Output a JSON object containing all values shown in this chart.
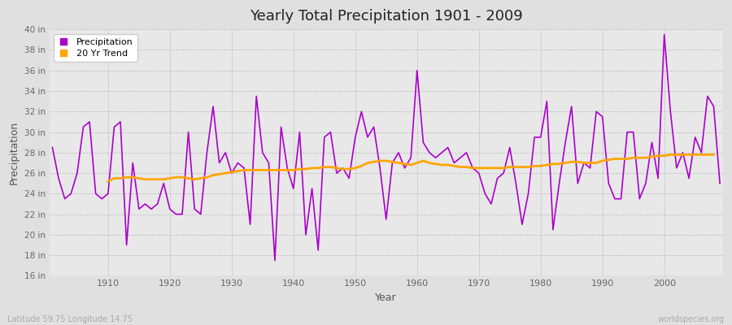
{
  "title": "Yearly Total Precipitation 1901 - 2009",
  "xlabel": "Year",
  "ylabel": "Precipitation",
  "subtitle": "Latitude 59.75 Longitude 14.75",
  "watermark": "worldspecies.org",
  "legend_labels": [
    "Precipitation",
    "20 Yr Trend"
  ],
  "precip_color": "#AA00CC",
  "trend_color": "#FFA500",
  "fig_bg_color": "#E0E0E0",
  "plot_bg_color": "#E8E8E8",
  "ylim": [
    16,
    40
  ],
  "ytick_step": 2,
  "years": [
    1901,
    1902,
    1903,
    1904,
    1905,
    1906,
    1907,
    1908,
    1909,
    1910,
    1911,
    1912,
    1913,
    1914,
    1915,
    1916,
    1917,
    1918,
    1919,
    1920,
    1921,
    1922,
    1923,
    1924,
    1925,
    1926,
    1927,
    1928,
    1929,
    1930,
    1931,
    1932,
    1933,
    1934,
    1935,
    1936,
    1937,
    1938,
    1939,
    1940,
    1941,
    1942,
    1943,
    1944,
    1945,
    1946,
    1947,
    1948,
    1949,
    1950,
    1951,
    1952,
    1953,
    1954,
    1955,
    1956,
    1957,
    1958,
    1959,
    1960,
    1961,
    1962,
    1963,
    1964,
    1965,
    1966,
    1967,
    1968,
    1969,
    1970,
    1971,
    1972,
    1973,
    1974,
    1975,
    1976,
    1977,
    1978,
    1979,
    1980,
    1981,
    1982,
    1983,
    1984,
    1985,
    1986,
    1987,
    1988,
    1989,
    1990,
    1991,
    1992,
    1993,
    1994,
    1995,
    1996,
    1997,
    1998,
    1999,
    2000,
    2001,
    2002,
    2003,
    2004,
    2005,
    2006,
    2007,
    2008,
    2009
  ],
  "precipitation": [
    28.5,
    25.5,
    23.5,
    24.0,
    26.0,
    30.5,
    31.0,
    24.0,
    23.5,
    24.0,
    30.5,
    31.0,
    19.0,
    27.0,
    22.5,
    23.0,
    22.5,
    23.0,
    25.0,
    22.5,
    22.0,
    22.0,
    30.0,
    22.5,
    22.0,
    28.0,
    32.5,
    27.0,
    28.0,
    26.0,
    27.0,
    26.5,
    21.0,
    33.5,
    28.0,
    27.0,
    17.5,
    30.5,
    26.5,
    24.5,
    30.0,
    20.0,
    24.5,
    18.5,
    29.5,
    30.0,
    26.0,
    26.5,
    25.5,
    29.5,
    32.0,
    29.5,
    30.5,
    26.5,
    21.5,
    27.0,
    28.0,
    26.5,
    27.5,
    36.0,
    29.0,
    28.0,
    27.5,
    28.0,
    28.5,
    27.0,
    27.5,
    28.0,
    26.5,
    26.0,
    24.0,
    23.0,
    25.5,
    26.0,
    28.5,
    25.0,
    21.0,
    24.0,
    29.5,
    29.5,
    33.0,
    20.5,
    25.0,
    29.0,
    32.5,
    25.0,
    27.0,
    26.5,
    32.0,
    31.5,
    25.0,
    23.5,
    23.5,
    30.0,
    30.0,
    23.5,
    25.0,
    29.0,
    25.5,
    39.5,
    32.0,
    26.5,
    28.0,
    25.5,
    29.5,
    28.0,
    33.5,
    32.5,
    25.0
  ],
  "trend": [
    null,
    null,
    null,
    null,
    null,
    null,
    null,
    null,
    null,
    25.2,
    25.5,
    25.5,
    25.6,
    25.6,
    25.5,
    25.4,
    25.4,
    25.4,
    25.4,
    25.5,
    25.6,
    25.6,
    25.5,
    25.4,
    25.5,
    25.6,
    25.8,
    25.9,
    26.0,
    26.1,
    26.2,
    26.3,
    26.3,
    26.3,
    26.3,
    26.3,
    26.3,
    26.3,
    26.3,
    26.3,
    26.4,
    26.4,
    26.5,
    26.5,
    26.6,
    26.6,
    26.5,
    26.4,
    26.4,
    26.5,
    26.7,
    27.0,
    27.1,
    27.2,
    27.2,
    27.1,
    27.0,
    26.9,
    26.8,
    27.0,
    27.2,
    27.0,
    26.9,
    26.8,
    26.8,
    26.7,
    26.6,
    26.6,
    26.5,
    26.5,
    26.5,
    26.5,
    26.5,
    26.5,
    26.6,
    26.6,
    26.6,
    26.6,
    26.7,
    26.7,
    26.8,
    26.9,
    26.9,
    27.0,
    27.1,
    27.1,
    27.0,
    27.0,
    27.0,
    27.2,
    27.3,
    27.4,
    27.4,
    27.4,
    27.5,
    27.5,
    27.5,
    27.6,
    27.7,
    27.7,
    27.8,
    27.8,
    27.8,
    27.8,
    27.8,
    27.8,
    27.8,
    27.8
  ]
}
